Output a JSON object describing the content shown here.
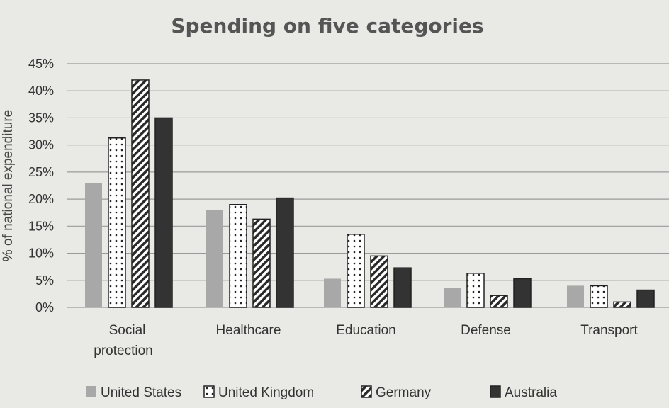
{
  "chart_data": {
    "type": "bar",
    "title": "Spending on five categories",
    "ylabel": "% of national expenditure",
    "xlabel": "",
    "categories": [
      [
        "Social",
        "protection"
      ],
      [
        "Healthcare"
      ],
      [
        "Education"
      ],
      [
        "Defense"
      ],
      [
        "Transport"
      ]
    ],
    "yticks": [
      "0%",
      "5%",
      "10%",
      "15%",
      "20%",
      "25%",
      "30%",
      "35%",
      "40%",
      "45%"
    ],
    "ylim": [
      0,
      45
    ],
    "grid": true,
    "legend_position": "bottom",
    "series": [
      {
        "name": "United States",
        "pattern": "solid-gray",
        "color": "#a8a8a8",
        "values": [
          23,
          18,
          5.3,
          3.6,
          4
        ]
      },
      {
        "name": "United Kingdom",
        "pattern": "dotted",
        "color": "#ffffff",
        "values": [
          31.3,
          19,
          13.5,
          6.3,
          4
        ]
      },
      {
        "name": "Germany",
        "pattern": "diagonal-hatch",
        "color": "#333333",
        "values": [
          42,
          16.3,
          9.5,
          2.2,
          1
        ]
      },
      {
        "name": "Australia",
        "pattern": "solid-black",
        "color": "#333333",
        "values": [
          35,
          20.2,
          7.3,
          5.3,
          3.2
        ]
      }
    ]
  }
}
